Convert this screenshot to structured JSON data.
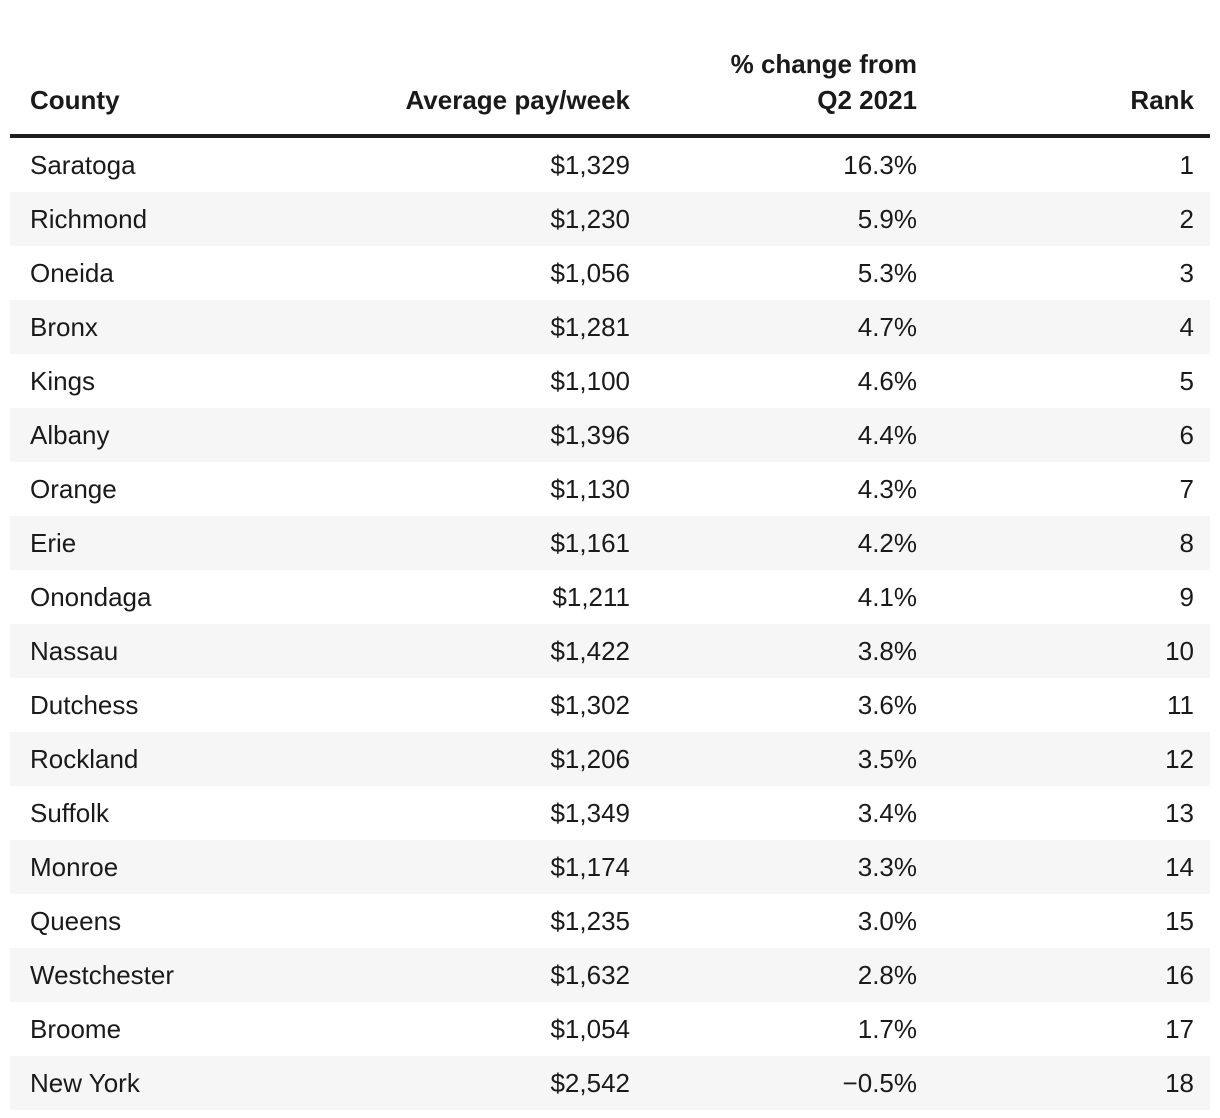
{
  "chart_data": {
    "type": "table",
    "title": "",
    "columns": [
      "County",
      "Average pay/week",
      "% change from\nQ2 2021",
      "Rank"
    ],
    "rows": [
      {
        "county": "Saratoga",
        "pay": "$1,329",
        "change": "16.3%",
        "rank": "1"
      },
      {
        "county": "Richmond",
        "pay": "$1,230",
        "change": "5.9%",
        "rank": "2"
      },
      {
        "county": "Oneida",
        "pay": "$1,056",
        "change": "5.3%",
        "rank": "3"
      },
      {
        "county": "Bronx",
        "pay": "$1,281",
        "change": "4.7%",
        "rank": "4"
      },
      {
        "county": "Kings",
        "pay": "$1,100",
        "change": "4.6%",
        "rank": "5"
      },
      {
        "county": "Albany",
        "pay": "$1,396",
        "change": "4.4%",
        "rank": "6"
      },
      {
        "county": "Orange",
        "pay": "$1,130",
        "change": "4.3%",
        "rank": "7"
      },
      {
        "county": "Erie",
        "pay": "$1,161",
        "change": "4.2%",
        "rank": "8"
      },
      {
        "county": "Onondaga",
        "pay": "$1,211",
        "change": "4.1%",
        "rank": "9"
      },
      {
        "county": "Nassau",
        "pay": "$1,422",
        "change": "3.8%",
        "rank": "10"
      },
      {
        "county": "Dutchess",
        "pay": "$1,302",
        "change": "3.6%",
        "rank": "11"
      },
      {
        "county": "Rockland",
        "pay": "$1,206",
        "change": "3.5%",
        "rank": "12"
      },
      {
        "county": "Suffolk",
        "pay": "$1,349",
        "change": "3.4%",
        "rank": "13"
      },
      {
        "county": "Monroe",
        "pay": "$1,174",
        "change": "3.3%",
        "rank": "14"
      },
      {
        "county": "Queens",
        "pay": "$1,235",
        "change": "3.0%",
        "rank": "15"
      },
      {
        "county": "Westchester",
        "pay": "$1,632",
        "change": "2.8%",
        "rank": "16"
      },
      {
        "county": "Broome",
        "pay": "$1,054",
        "change": "1.7%",
        "rank": "17"
      },
      {
        "county": "New York",
        "pay": "$2,542",
        "change": "−0.5%",
        "rank": "18"
      }
    ]
  },
  "colors": {
    "text": "#1a1a1a",
    "header_rule": "#1f1f1f",
    "zebra_stripe": "#f6f6f6",
    "background": "#ffffff"
  }
}
